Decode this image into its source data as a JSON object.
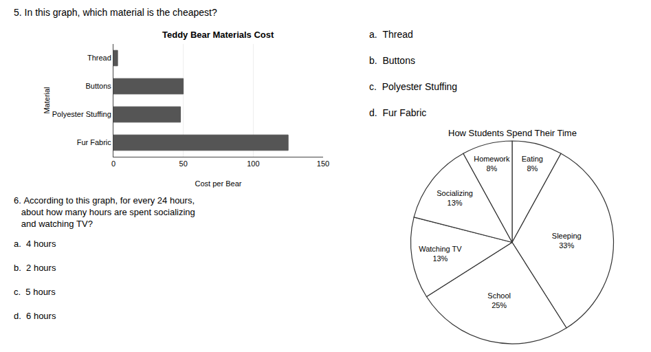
{
  "chart_data": [
    {
      "type": "bar",
      "orientation": "horizontal",
      "title": "Teddy Bear Materials Cost",
      "categories": [
        "Fur Fabric",
        "Polyester Stuffing",
        "Buttons",
        "Thread"
      ],
      "values": [
        125,
        48,
        50,
        3
      ],
      "color": "#555555",
      "xlabel": "Cost per Bear",
      "ylabel": "Material",
      "xlim": [
        0,
        150
      ],
      "xticks": [
        0,
        50,
        100,
        150
      ],
      "grid": true,
      "annotations": {
        "question": [
          "5. In this graph, which material is the cheapest?"
        ],
        "answers": [
          "a.  Thread",
          "b.  Buttons",
          "c.  Polyester Stuffing",
          "d.  Fur Fabric"
        ]
      }
    },
    {
      "type": "pie",
      "title": "How Students Spend Their Time",
      "categories": [
        "Eating",
        "Sleeping",
        "School",
        "Watching TV",
        "Socializing",
        "Homework"
      ],
      "values": [
        8,
        33,
        25,
        13,
        13,
        8
      ],
      "value_labels": [
        "8%",
        "33%",
        "25%",
        "13%",
        "13%",
        "8%"
      ],
      "data_labels": true,
      "color": "#ffffff",
      "annotations": {
        "question": [
          "6. According to this graph, for every 24 hours,",
          "   about how many hours are spent socializing",
          "   and watching TV?"
        ],
        "answers": [
          "a.  4 hours",
          "b.  2 hours",
          "c.  5 hours",
          "d.  6 hours"
        ]
      }
    }
  ]
}
